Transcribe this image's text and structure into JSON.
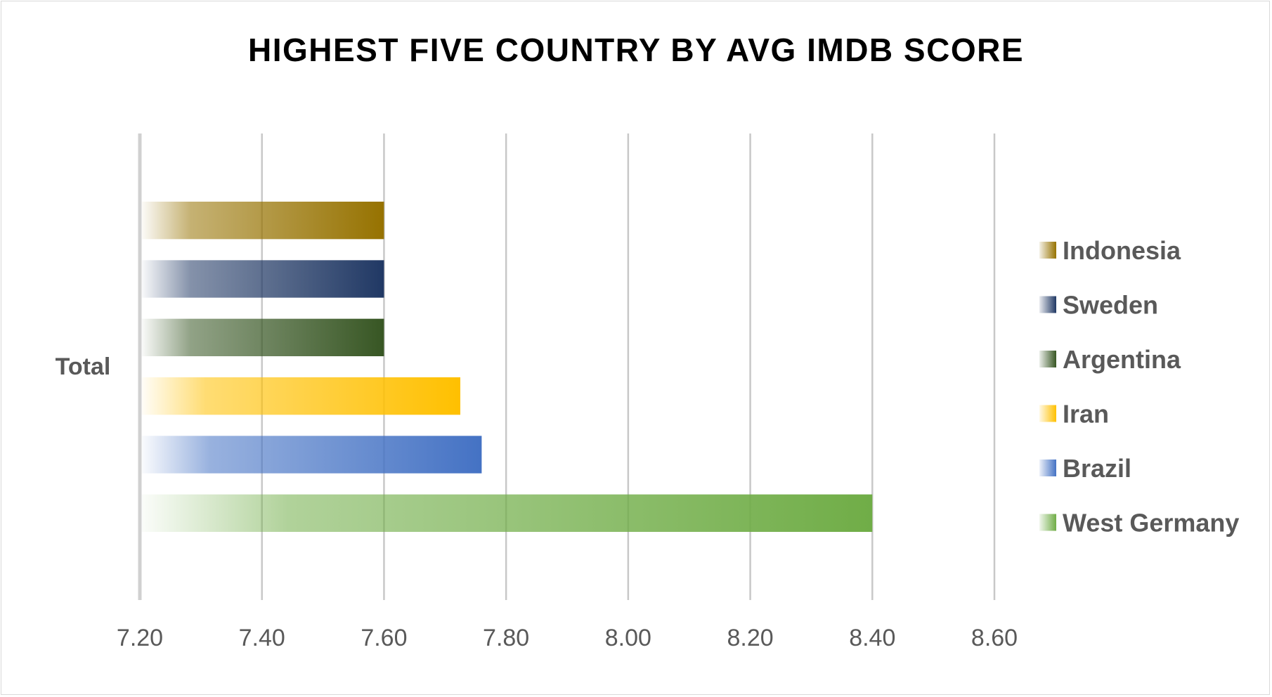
{
  "chart_data": {
    "type": "bar",
    "orientation": "horizontal",
    "title": "HIGHEST FIVE COUNTRY BY AVG IMDB SCORE",
    "categories": [
      "Total"
    ],
    "series": [
      {
        "name": "Indonesia",
        "values": [
          7.6
        ],
        "color": "#967200"
      },
      {
        "name": "Sweden",
        "values": [
          7.6
        ],
        "color": "#203864"
      },
      {
        "name": "Argentina",
        "values": [
          7.6
        ],
        "color": "#375623"
      },
      {
        "name": "Iran",
        "values": [
          7.725
        ],
        "color": "#ffc000"
      },
      {
        "name": "Brazil",
        "values": [
          7.76
        ],
        "color": "#4472c4"
      },
      {
        "name": "West Germany",
        "values": [
          8.4
        ],
        "color": "#70ad47"
      }
    ],
    "xlim": [
      7.2,
      8.6
    ],
    "x_ticks": [
      "7.20",
      "7.40",
      "7.60",
      "7.80",
      "8.00",
      "8.20",
      "8.40",
      "8.60"
    ],
    "grid": true,
    "legend_position": "right",
    "xlabel": "",
    "ylabel": ""
  }
}
